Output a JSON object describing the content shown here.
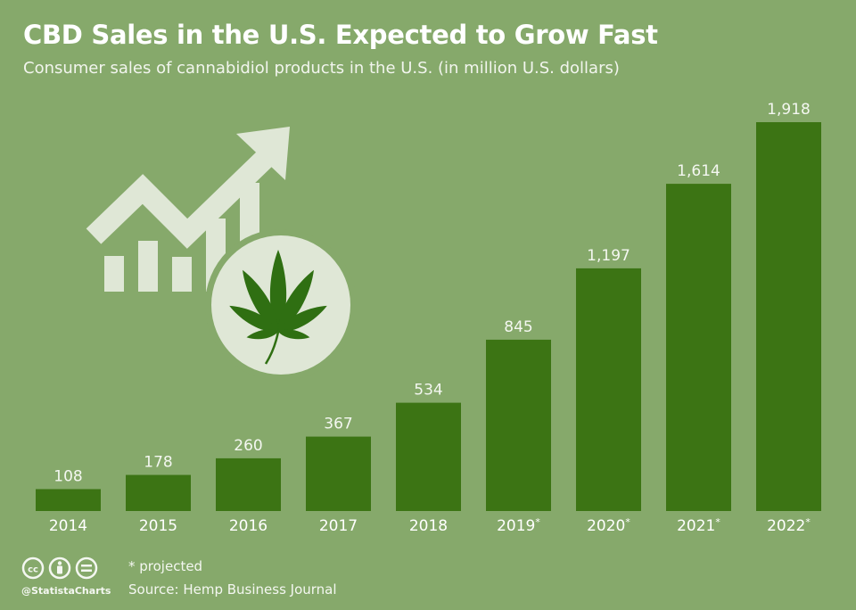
{
  "header": {
    "title": "CBD Sales in the U.S. Expected to Grow Fast",
    "subtitle": "Consumer sales of cannabidiol products in the U.S. (in million U.S. dollars)"
  },
  "footer": {
    "footnote": "* projected",
    "source": "Source: Hemp Business Journal",
    "brand": "@StatistaCharts"
  },
  "colors": {
    "background": "#86a96b",
    "bar": "#3c7414",
    "illustration": "#dfe7d6",
    "leaf": "#2f6f12"
  },
  "icons": [
    "creative-commons-icon",
    "attribution-icon",
    "no-derivatives-icon",
    "growth-chart-icon",
    "cannabis-leaf-icon"
  ],
  "chart_data": {
    "type": "bar",
    "title": "CBD Sales in the U.S. Expected to Grow Fast",
    "xlabel": "",
    "ylabel": "",
    "ylim": [
      0,
      1918
    ],
    "grid": false,
    "categories": [
      "2014",
      "2015",
      "2016",
      "2017",
      "2018",
      "2019",
      "2020",
      "2021",
      "2022"
    ],
    "projected": [
      false,
      false,
      false,
      false,
      false,
      true,
      true,
      true,
      true
    ],
    "values": [
      108,
      178,
      260,
      367,
      534,
      845,
      1197,
      1614,
      1918
    ],
    "value_labels": [
      "108",
      "178",
      "260",
      "367",
      "534",
      "845",
      "1,197",
      "1,614",
      "1,918"
    ]
  }
}
